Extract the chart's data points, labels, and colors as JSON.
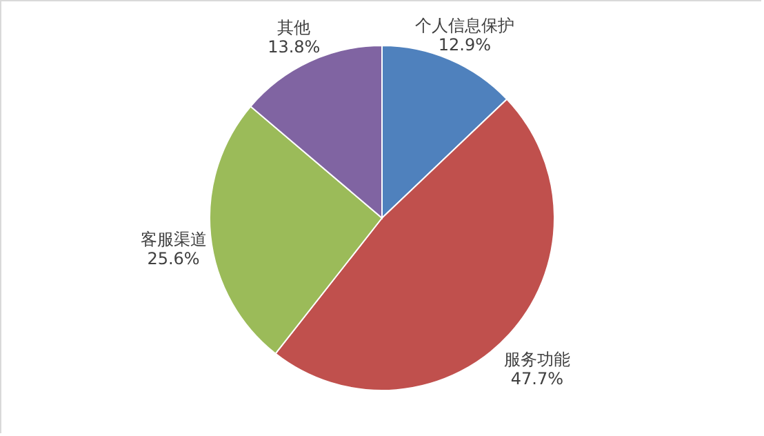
{
  "chart_data": {
    "type": "pie",
    "categories": [
      "个人信息保护",
      "服务功能",
      "客服渠道",
      "其他"
    ],
    "values": [
      12.9,
      47.7,
      25.6,
      13.8
    ],
    "colors": [
      "#4f81bd",
      "#c0504d",
      "#9bbb59",
      "#8064a2"
    ],
    "value_labels": [
      "12.9%",
      "47.7%",
      "25.6%",
      "13.8%"
    ]
  }
}
